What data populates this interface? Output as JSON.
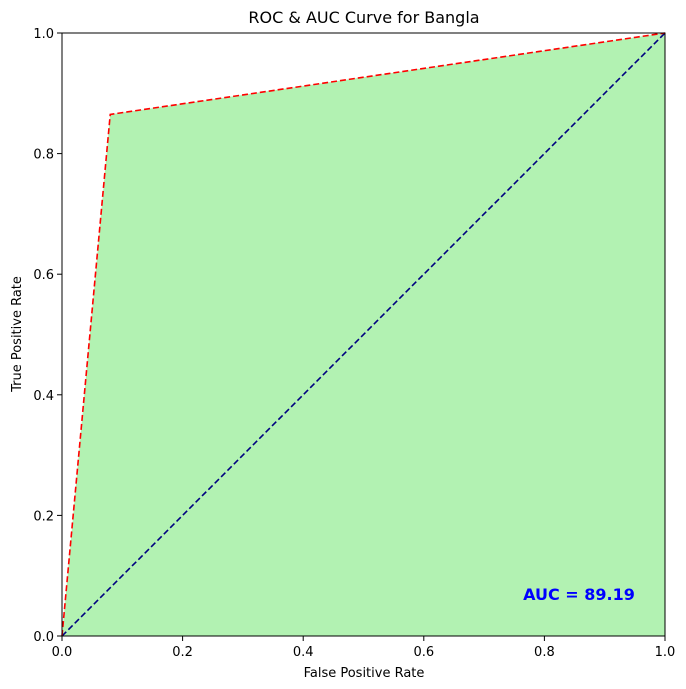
{
  "chart_data": {
    "type": "area",
    "title": "ROC & AUC Curve for Bangla",
    "xlabel": "False Positive Rate",
    "ylabel": "True Positive Rate",
    "xlim": [
      0.0,
      1.0
    ],
    "ylim": [
      0.0,
      1.0
    ],
    "x_ticks": [
      "0.0",
      "0.2",
      "0.4",
      "0.6",
      "0.8",
      "1.0"
    ],
    "y_ticks": [
      "0.0",
      "0.2",
      "0.4",
      "0.6",
      "0.8",
      "1.0"
    ],
    "grid": false,
    "series": [
      {
        "role": "roc-curve",
        "x": [
          0.0,
          0.08,
          1.0
        ],
        "y": [
          0.0,
          0.865,
          1.0
        ],
        "color": "#ff0000",
        "linestyle": "dashed",
        "fill": "#b2f2b2"
      },
      {
        "role": "chance-diagonal",
        "x": [
          0.0,
          1.0
        ],
        "y": [
          0.0,
          1.0
        ],
        "color": "#000080",
        "linestyle": "dashed"
      }
    ],
    "annotation": {
      "text": "AUC = 89.19",
      "x": 0.95,
      "y": 0.06,
      "color": "#0000ff"
    }
  }
}
